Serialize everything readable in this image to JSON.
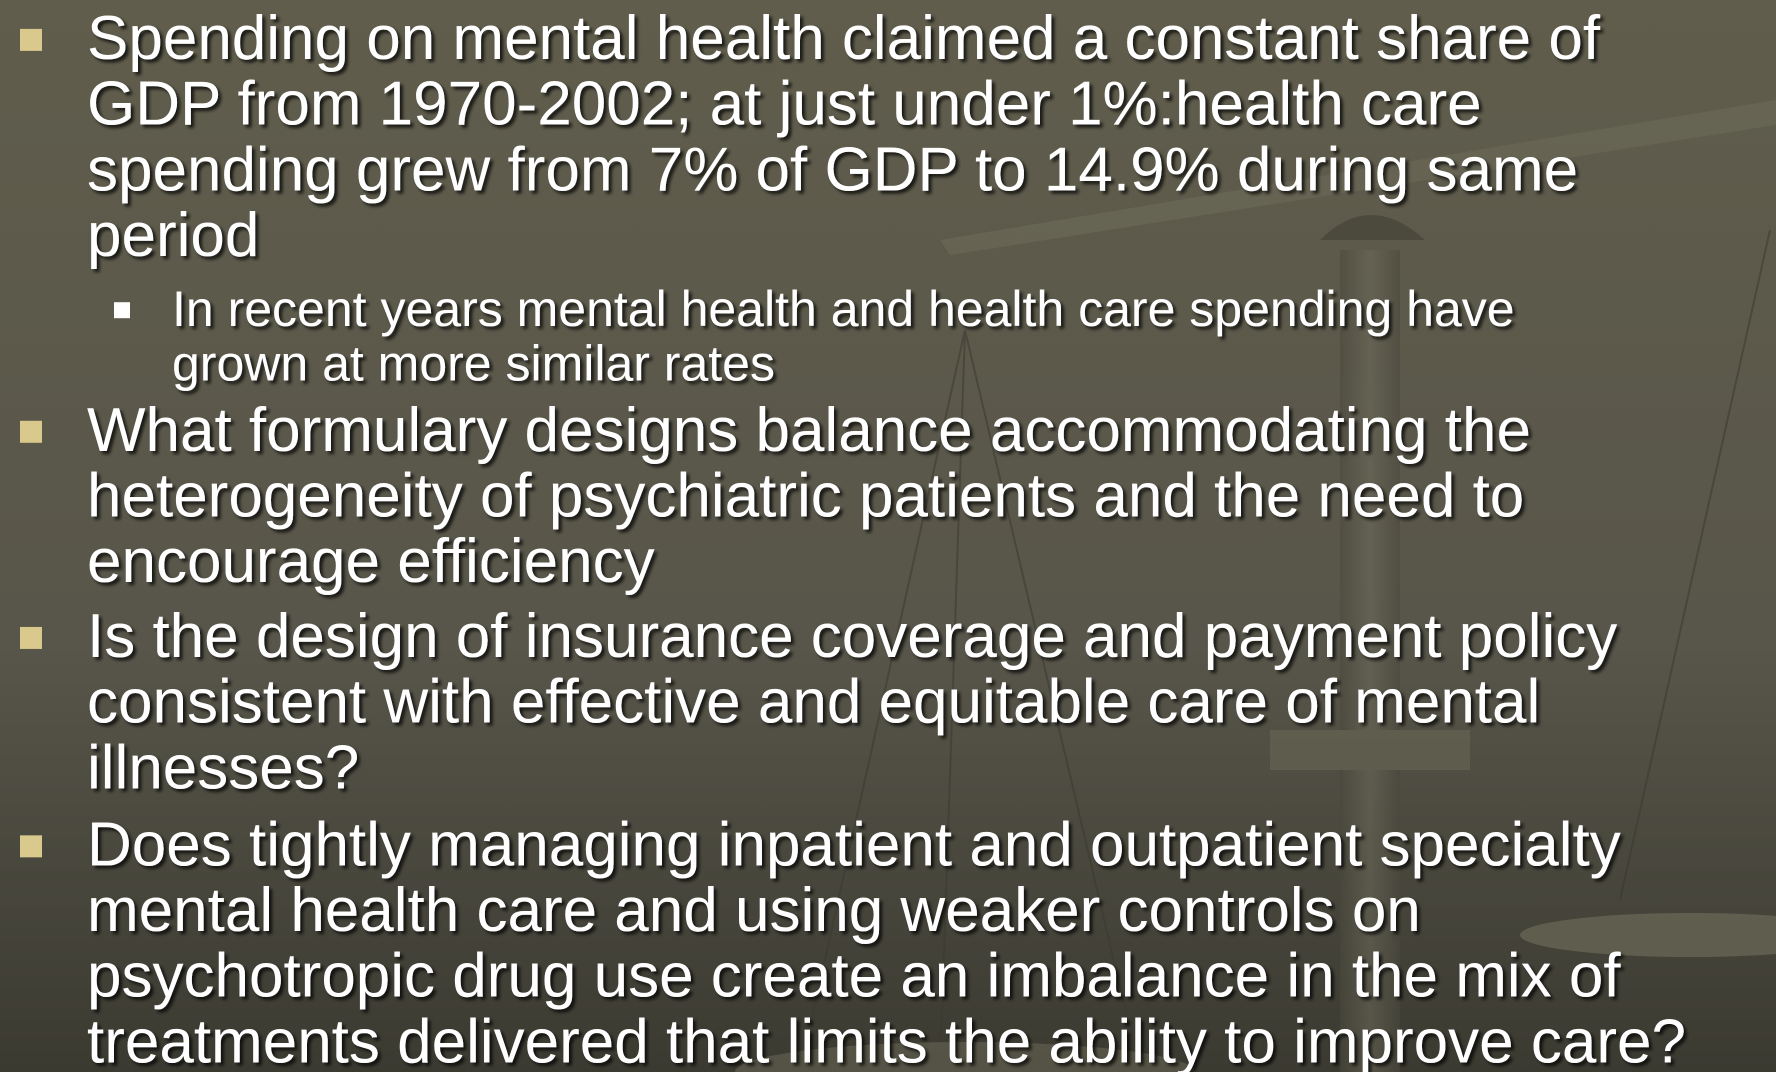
{
  "bullets": [
    {
      "lines": [
        "Spending on mental health claimed a constant share of",
        "GDP from 1970-2002; at just under 1%:health care",
        "spending grew from 7% of GDP to 14.9% during same",
        "period"
      ],
      "sub": [
        {
          "lines": [
            "In recent years mental health and health care spending have",
            "grown at more similar rates"
          ]
        }
      ]
    },
    {
      "lines": [
        "What formulary designs balance accommodating the",
        "heterogeneity of psychiatric patients and the need to",
        "encourage efficiency"
      ]
    },
    {
      "lines": [
        "Is the design of insurance coverage and payment policy",
        "consistent with effective and equitable care of mental",
        "illnesses?"
      ]
    },
    {
      "lines": [
        "Does tightly managing inpatient and outpatient specialty",
        "mental health care and using weaker controls on",
        "psychotropic drug use create an imbalance in the mix of",
        "treatments delivered that limits the ability to improve care?"
      ]
    }
  ]
}
